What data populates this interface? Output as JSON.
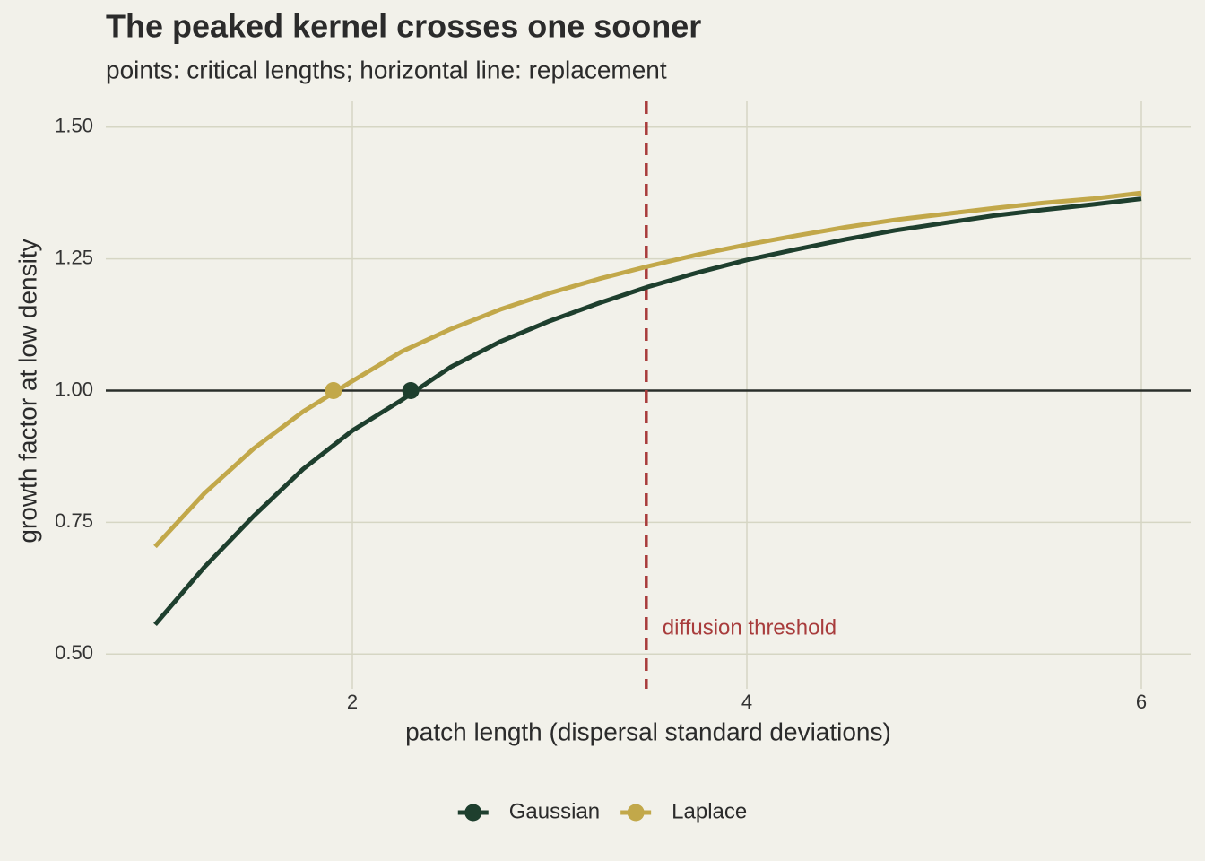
{
  "chart_data": {
    "type": "line",
    "title": "The peaked kernel crosses one sooner",
    "subtitle": "points: critical lengths; horizontal line: replacement",
    "x_label": "patch length (dispersal standard deviations)",
    "y_label": "growth factor at low density",
    "x": [
      1,
      1.25,
      1.5,
      1.75,
      2,
      2.25,
      2.5,
      2.75,
      3,
      3.25,
      3.5,
      3.75,
      4,
      4.25,
      4.5,
      4.75,
      5,
      5.25,
      5.5,
      5.75,
      6
    ],
    "series": [
      {
        "name": "Gaussian",
        "color": "#1e3f2e",
        "values": [
          0.556,
          0.665,
          0.762,
          0.851,
          0.924,
          0.982,
          1.045,
          1.093,
          1.132,
          1.166,
          1.197,
          1.224,
          1.248,
          1.268,
          1.287,
          1.304,
          1.318,
          1.332,
          1.343,
          1.353,
          1.364
        ],
        "critical": {
          "x": 2.296,
          "y": 1
        }
      },
      {
        "name": "Laplace",
        "color": "#c2a84a",
        "values": [
          0.704,
          0.805,
          0.89,
          0.96,
          1.018,
          1.074,
          1.117,
          1.154,
          1.185,
          1.212,
          1.236,
          1.258,
          1.277,
          1.294,
          1.31,
          1.324,
          1.335,
          1.346,
          1.356,
          1.364,
          1.375
        ],
        "critical": {
          "x": 1.904,
          "y": 1
        }
      }
    ],
    "hline": 1,
    "vline": {
      "x": 3.49,
      "color": "#a83c3c",
      "label": "diffusion threshold"
    },
    "xlim": [
      0.75,
      6.25
    ],
    "ylim": [
      0.434,
      1.549
    ],
    "xticks": [
      2,
      4,
      6
    ],
    "yticks": [
      {
        "value": 0.5,
        "label": "0.50"
      },
      {
        "value": 0.75,
        "label": "0.75"
      },
      {
        "value": 1,
        "label": "1.00"
      },
      {
        "value": 1.25,
        "label": "1.25"
      },
      {
        "value": 1.5,
        "label": "1.50"
      }
    ],
    "grid": true,
    "legend": "bottom"
  }
}
